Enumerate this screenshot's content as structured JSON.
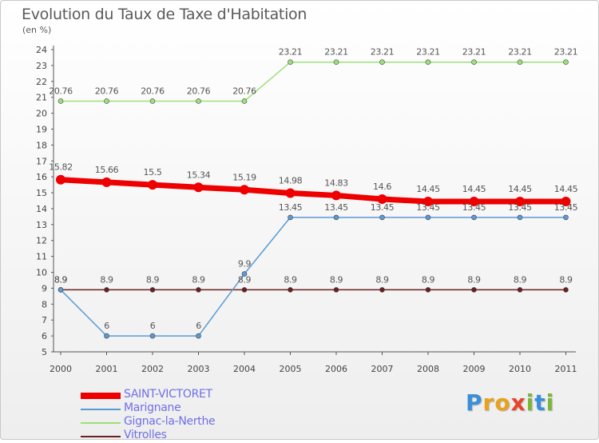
{
  "title": "Evolution du Taux de Taxe d'Habitation",
  "subtitle": "(en %)",
  "logo": {
    "text": "Proxiti",
    "letters": [
      {
        "ch": "P",
        "color": "#3b8fd9"
      },
      {
        "ch": "r",
        "color": "#e8a21c"
      },
      {
        "ch": "o",
        "color": "#e8a21c"
      },
      {
        "ch": "x",
        "color": "#e8452a"
      },
      {
        "ch": "i",
        "color": "#7bb83a"
      },
      {
        "ch": "t",
        "color": "#3b8fd9"
      },
      {
        "ch": "i",
        "color": "#7bb83a"
      }
    ]
  },
  "chart_data": {
    "type": "line",
    "title": "Evolution du Taux de Taxe d'Habitation",
    "ylabel": "(en %)",
    "xlabel": "",
    "x": [
      "2000",
      "2001",
      "2002",
      "2003",
      "2004",
      "2005",
      "2006",
      "2007",
      "2008",
      "2009",
      "2010",
      "2011"
    ],
    "ylim": [
      5,
      24
    ],
    "yticks": [
      5,
      6,
      7,
      8,
      9,
      10,
      11,
      12,
      13,
      14,
      15,
      16,
      17,
      18,
      19,
      20,
      21,
      22,
      23,
      24
    ],
    "grid": false,
    "legend_position": "bottom-left",
    "series": [
      {
        "name": "SAINT-VICTORET",
        "color": "#ee0000",
        "width": 7,
        "values": [
          15.82,
          15.66,
          15.5,
          15.34,
          15.19,
          14.98,
          14.83,
          14.6,
          14.45,
          14.45,
          14.45,
          14.45
        ],
        "labels": [
          "15.82",
          "15.66",
          "15.5",
          "15.34",
          "15.19",
          "14.98",
          "14.83",
          "14.6",
          "14.45",
          "14.45",
          "14.45",
          "14.45"
        ]
      },
      {
        "name": "Marignane",
        "color": "#5b9bd5",
        "width": 1.5,
        "values": [
          8.9,
          6,
          6,
          6,
          9.9,
          13.45,
          13.45,
          13.45,
          13.45,
          13.45,
          13.45,
          13.45
        ],
        "labels": [
          "8.9",
          "6",
          "6",
          "6",
          "9.9",
          "13.45",
          "13.45",
          "13.45",
          "13.45",
          "13.45",
          "13.45",
          "13.45"
        ]
      },
      {
        "name": "Gignac-la-Nerthe",
        "color": "#9ee07a",
        "width": 1.5,
        "values": [
          20.76,
          20.76,
          20.76,
          20.76,
          20.76,
          23.21,
          23.21,
          23.21,
          23.21,
          23.21,
          23.21,
          23.21
        ],
        "labels": [
          "20.76",
          "20.76",
          "20.76",
          "20.76",
          "20.76",
          "23.21",
          "23.21",
          "23.21",
          "23.21",
          "23.21",
          "23.21",
          "23.21"
        ]
      },
      {
        "name": "Vitrolles",
        "color": "#6b1f1f",
        "width": 1.5,
        "values": [
          8.9,
          8.9,
          8.9,
          8.9,
          8.9,
          8.9,
          8.9,
          8.9,
          8.9,
          8.9,
          8.9,
          8.9
        ],
        "labels": [
          "8.9",
          "8.9",
          "8.9",
          "8.9",
          "8.9",
          "8.9",
          "8.9",
          "8.9",
          "8.9",
          "8.9",
          "8.9",
          "8.9"
        ]
      }
    ]
  }
}
